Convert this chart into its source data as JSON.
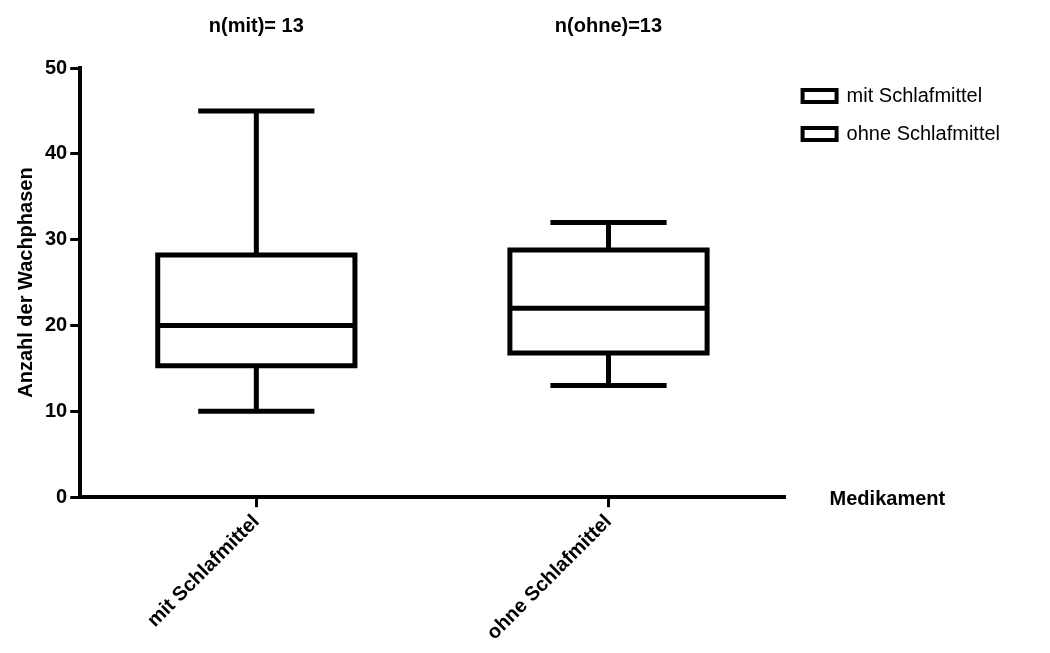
{
  "chart_data": {
    "type": "box",
    "xlabel": "Medikament",
    "ylabel": "Anzahl der Wachphasen",
    "categories": [
      "mit Schlafmittel",
      "ohne Schlafmittel"
    ],
    "series": [
      {
        "name": "mit Schlafmittel",
        "color": "#000000",
        "boxes": [
          {
            "low": 10,
            "q1": 15.3,
            "median": 20,
            "q3": 28.2,
            "high": 45
          },
          null
        ]
      },
      {
        "name": "ohne Schlafmittel",
        "color": "#000000",
        "boxes": [
          null,
          {
            "low": 13,
            "q1": 16.8,
            "median": 22,
            "q3": 28.8,
            "high": 32
          }
        ]
      }
    ],
    "annotations": [
      "n(mit)= 13",
      "n(ohne)=13"
    ],
    "ylim": [
      0,
      50
    ],
    "yticks": [
      0,
      10,
      20,
      30,
      40,
      50
    ],
    "grid": false,
    "legend": "top right"
  }
}
